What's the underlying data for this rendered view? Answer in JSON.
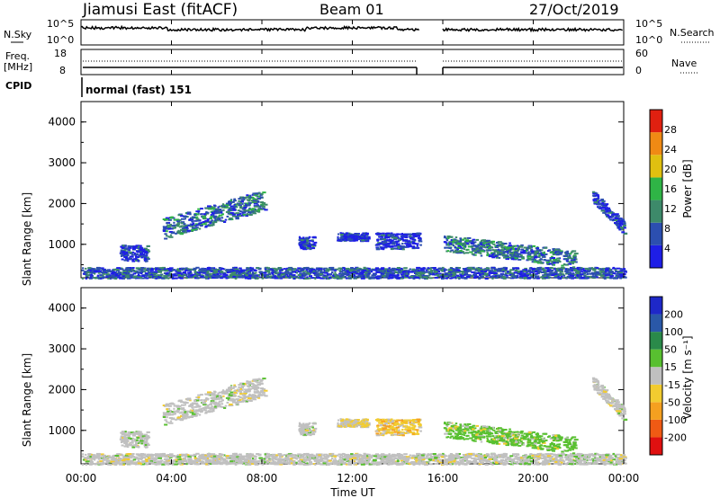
{
  "header": {
    "station": "Jiamusi East (fitACF)",
    "beam": "Beam 01",
    "date": "27/Oct/2019"
  },
  "sky_panel": {
    "left_label": "N.Sky",
    "right_label": "N.Search",
    "y_tick_top": "10^5",
    "y_tick_bottom": "10^0"
  },
  "freq_panel": {
    "left_label_1": "Freq.",
    "left_label_2": "[MHz]",
    "right_label": "Nave",
    "left_tick_top": "18",
    "left_tick_bottom": "8",
    "right_tick_top": "60",
    "right_tick_bottom": "0"
  },
  "cpid": {
    "label": "CPID",
    "mode": "normal (fast) 151"
  },
  "xaxis": {
    "label": "Time UT",
    "ticks": [
      "00:00",
      "04:00",
      "08:00",
      "12:00",
      "16:00",
      "20:00",
      "00:00"
    ]
  },
  "power_panel": {
    "ylabel": "Slant Range [km]",
    "yticks": [
      "1000",
      "2000",
      "3000",
      "4000"
    ],
    "colorbar_label": "Power [dB]",
    "colorbar_ticks": [
      "4",
      "8",
      "12",
      "16",
      "20",
      "24",
      "28"
    ],
    "colors": [
      "#1e1ee6",
      "#2c4fb0",
      "#3d8a6a",
      "#2fb446",
      "#e0c010",
      "#f08a14",
      "#e02010"
    ]
  },
  "velocity_panel": {
    "ylabel": "Slant Range [km]",
    "yticks": [
      "1000",
      "2000",
      "3000",
      "4000"
    ],
    "colorbar_label": "Velocity [m s⁻¹]",
    "colorbar_ticks": [
      "-200",
      "-100",
      "-50",
      "-15",
      "15",
      "50",
      "100",
      "200"
    ],
    "colors": [
      "#e01010",
      "#f05a14",
      "#f5a020",
      "#f2cc30",
      "#c0c0c0",
      "#58c030",
      "#2a8a4a",
      "#2a58a8",
      "#1e28c8"
    ]
  },
  "chart_data": {
    "type": "heatmap",
    "x_range_hours": [
      0,
      24
    ],
    "y_range_km": [
      180,
      4500
    ],
    "data_gaps_hours": [
      [
        15.0,
        16.0
      ]
    ],
    "echo_regions": [
      {
        "t0": 0.0,
        "t1": 24.0,
        "r0": 180,
        "r1": 450,
        "power": "weak",
        "velocity": "~0"
      },
      {
        "t0": 1.7,
        "t1": 2.9,
        "r0": 600,
        "r1": 1000,
        "power": 8,
        "velocity": "~0"
      },
      {
        "t0": 3.6,
        "t1": 8.1,
        "r0": 1200,
        "r1": 2300,
        "power": 10,
        "velocity": "~0"
      },
      {
        "t0": 9.6,
        "t1": 10.3,
        "r0": 900,
        "r1": 1200,
        "power": 6,
        "velocity": "~0"
      },
      {
        "t0": 11.3,
        "t1": 12.7,
        "r0": 1100,
        "r1": 1300,
        "power": 6,
        "velocity": "-15"
      },
      {
        "t0": 13.0,
        "t1": 15.0,
        "r0": 900,
        "r1": 1300,
        "power": 6,
        "velocity": "-30"
      },
      {
        "t0": 16.0,
        "t1": 21.8,
        "r0": 600,
        "r1": 1300,
        "power": 12,
        "velocity": "30"
      },
      {
        "t0": 22.6,
        "t1": 24.0,
        "r0": 1200,
        "r1": 2300,
        "power": 6,
        "velocity": "~0"
      }
    ]
  }
}
